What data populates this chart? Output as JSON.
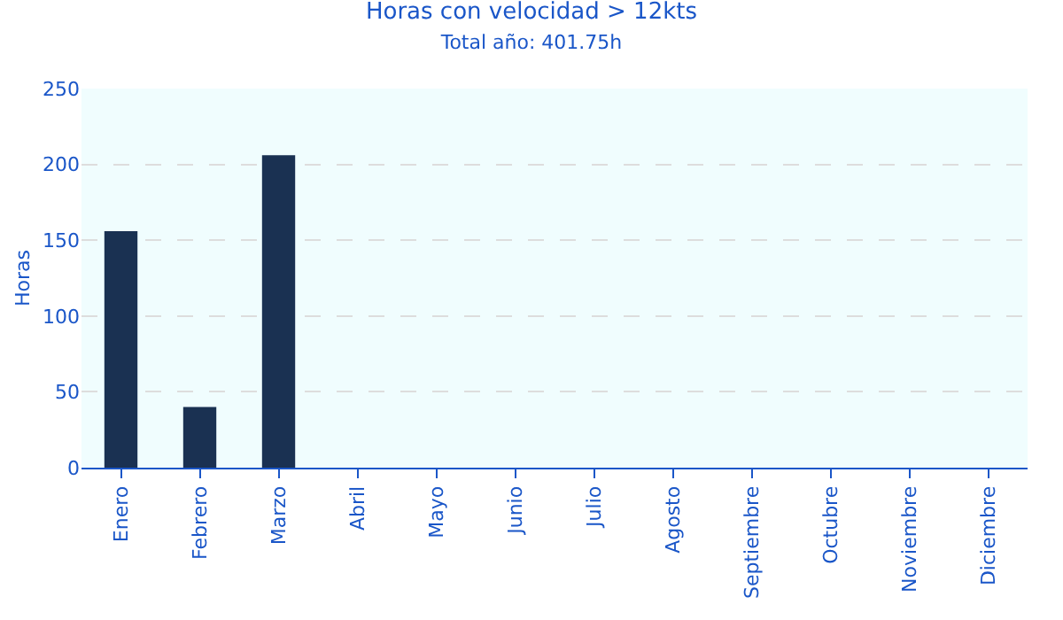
{
  "chart_data": {
    "type": "bar",
    "title": "Horas con velocidad > 12kts",
    "subtitle": "Total año: 401.75h",
    "ylabel": "Horas",
    "categories": [
      "Enero",
      "Febrero",
      "Marzo",
      "Abril",
      "Mayo",
      "Junio",
      "Julio",
      "Agosto",
      "Septiembre",
      "Octubre",
      "Noviembre",
      "Diciembre"
    ],
    "values": [
      156,
      40,
      206,
      0,
      0,
      0,
      0,
      0,
      0,
      0,
      0,
      0
    ],
    "color": "#1a3152",
    "ylim": [
      0,
      250
    ],
    "yticks": [
      0,
      50,
      100,
      150,
      200,
      250
    ],
    "grid": "y"
  }
}
